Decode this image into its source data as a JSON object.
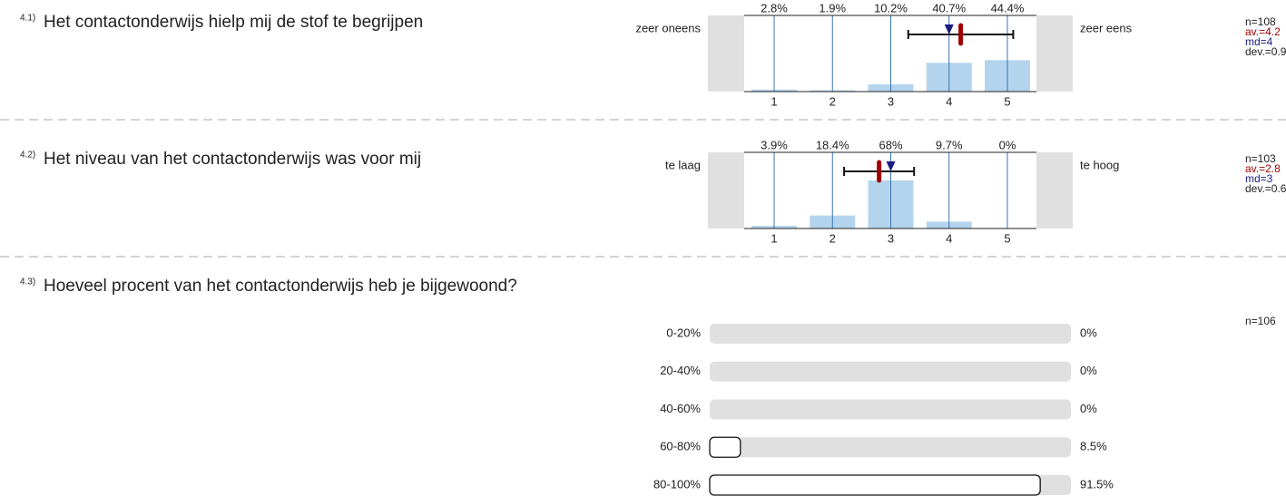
{
  "chart_data": [
    {
      "type": "bar",
      "number": "4.1)",
      "title": "Het contactonderwijs hielp mij de stof te begrijpen",
      "left_label": "zeer oneens",
      "right_label": "zeer eens",
      "categories": [
        1,
        2,
        3,
        4,
        5
      ],
      "values": [
        2.8,
        1.9,
        10.2,
        40.7,
        44.4
      ],
      "value_labels": [
        "2.8%",
        "1.9%",
        "10.2%",
        "40.7%",
        "44.4%"
      ],
      "ylim": [
        0,
        100
      ],
      "n": "n=108",
      "mean": {
        "value": 4.2,
        "label": "av.=4.2"
      },
      "median": {
        "value": 4,
        "label": "md=4"
      },
      "dev": {
        "value": 0.9,
        "label": "dev.=0.9"
      },
      "color": "#b4d4ee"
    },
    {
      "type": "bar",
      "number": "4.2)",
      "title": "Het niveau van het contactonderwijs was voor mij",
      "left_label": "te laag",
      "right_label": "te hoog",
      "categories": [
        1,
        2,
        3,
        4,
        5
      ],
      "values": [
        3.9,
        18.4,
        68,
        9.7,
        0
      ],
      "value_labels": [
        "3.9%",
        "18.4%",
        "68%",
        "9.7%",
        "0%"
      ],
      "ylim": [
        0,
        100
      ],
      "n": "n=103",
      "mean": {
        "value": 2.8,
        "label": "av.=2.8"
      },
      "median": {
        "value": 3,
        "label": "md=3"
      },
      "dev": {
        "value": 0.6,
        "label": "dev.=0.6"
      },
      "color": "#b4d4ee"
    },
    {
      "type": "barh",
      "number": "4.3)",
      "title": "Hoeveel procent van het contactonderwijs heb je bijgewoond?",
      "categories": [
        "0-20%",
        "20-40%",
        "40-60%",
        "60-80%",
        "80-100%"
      ],
      "values": [
        0,
        0,
        0,
        8.5,
        91.5
      ],
      "value_labels": [
        "0%",
        "0%",
        "0%",
        "8.5%",
        "91.5%"
      ],
      "xlim": [
        0,
        100
      ],
      "n": "n=106"
    }
  ]
}
